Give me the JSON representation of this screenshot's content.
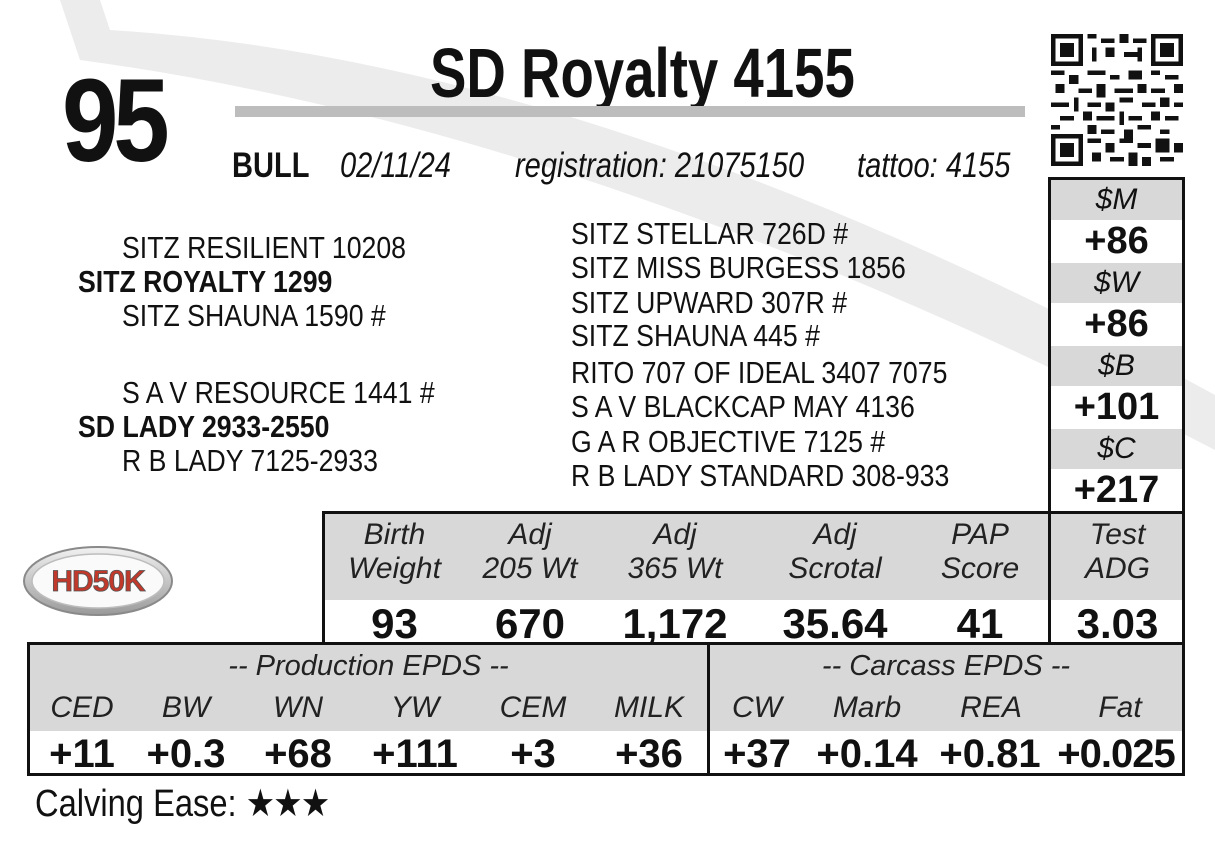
{
  "lot_number": "95",
  "title": "SD Royalty 4155",
  "info": {
    "sex": "BULL",
    "birth_date": "02/11/24",
    "registration": "registration:  21075150",
    "tattoo": "tattoo: 4155"
  },
  "pedigree": {
    "sire": "SITZ ROYALTY 1299",
    "sire_sire": "SITZ RESILIENT 10208",
    "sire_dam": "SITZ SHAUNA 1590 #",
    "dam": "SD LADY 2933-2550",
    "dam_sire": "S A V RESOURCE 1441 #",
    "dam_dam": "R B LADY 7125-2933",
    "great_grandparents": [
      "SITZ STELLAR 726D #",
      "SITZ MISS BURGESS 1856",
      "SITZ UPWARD 307R #",
      "SITZ SHAUNA 445 #",
      "RITO 707 OF IDEAL 3407 7075",
      "S A V BLACKCAP MAY 4136",
      "G A R OBJECTIVE 7125 #",
      "R B LADY STANDARD 308-933"
    ]
  },
  "indexes": [
    {
      "label": "$M",
      "value": "+86"
    },
    {
      "label": "$W",
      "value": "+86"
    },
    {
      "label": "$B",
      "value": "+101"
    },
    {
      "label": "$C",
      "value": "+217"
    }
  ],
  "performance": [
    {
      "label1": "Birth",
      "label2": "Weight",
      "value": "93"
    },
    {
      "label1": "Adj",
      "label2": "205 Wt",
      "value": "670"
    },
    {
      "label1": "Adj",
      "label2": "365 Wt",
      "value": "1,172"
    },
    {
      "label1": "Adj",
      "label2": "Scrotal",
      "value": "35.64"
    },
    {
      "label1": "PAP",
      "label2": "Score",
      "value": "41"
    },
    {
      "label1": "Test",
      "label2": "ADG",
      "value": "3.03"
    }
  ],
  "production_epds": {
    "title": "-- Production EPDS --",
    "items": [
      {
        "label": "CED",
        "value": "+11"
      },
      {
        "label": "BW",
        "value": "+0.3"
      },
      {
        "label": "WN",
        "value": "+68"
      },
      {
        "label": "YW",
        "value": "+111"
      },
      {
        "label": "CEM",
        "value": "+3"
      },
      {
        "label": "MILK",
        "value": "+36"
      }
    ]
  },
  "carcass_epds": {
    "title": "-- Carcass EPDS --",
    "items": [
      {
        "label": "CW",
        "value": "+37"
      },
      {
        "label": "Marb",
        "value": "+0.14"
      },
      {
        "label": "REA",
        "value": "+0.81"
      },
      {
        "label": "Fat",
        "value": "+0.025"
      }
    ]
  },
  "calving_ease": {
    "label": "Calving Ease:",
    "stars": 3,
    "stars_text": "★★★"
  },
  "logo_text": "HD50K"
}
